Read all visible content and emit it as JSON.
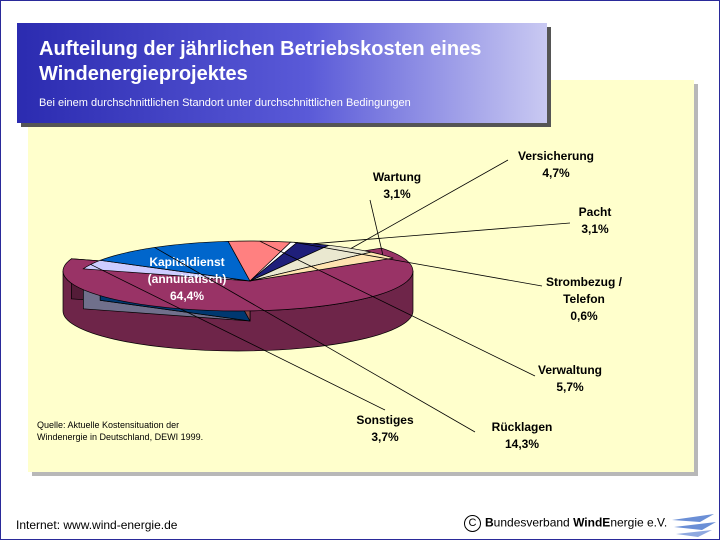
{
  "colors": {
    "frame": "#2a2a9a",
    "panel": "#ffffcc",
    "header_start": "#2b2bb0",
    "header_end": "#c9c9f2"
  },
  "header": {
    "title": "Aufteilung der jährlichen Betriebskosten eines Windenergieprojektes",
    "subtitle": "Bei einem durchschnittlichen Standort unter durchschnittlichen Bedingungen"
  },
  "source": "Quelle: Aktuelle Kostensituation der Windenergie in Deutschland, DEWI 1999.",
  "footer": {
    "internet": "Internet: www.wind-energie.de",
    "copyright_symbol": "C",
    "org": {
      "b1": "B",
      "r1": "undesverband ",
      "b2": "Wind",
      "r2": "E",
      "r3": "nergie e.V."
    }
  },
  "chart_data": {
    "type": "pie",
    "title": "Aufteilung der jährlichen Betriebskosten eines Windenergieprojektes",
    "slices": [
      {
        "label": "Kapitaldienst (annuitätisch)",
        "value": 64.4,
        "value_label": "64,4%",
        "color": "#993366"
      },
      {
        "label": "Sonstiges",
        "value": 3.7,
        "value_label": "3,7%",
        "color": "#ccccff"
      },
      {
        "label": "Rücklagen",
        "value": 14.3,
        "value_label": "14,3%",
        "color": "#0066cc"
      },
      {
        "label": "Verwaltung",
        "value": 5.7,
        "value_label": "5,7%",
        "color": "#ff8080"
      },
      {
        "label": "Strombezug / Telefon",
        "value": 0.6,
        "value_label": "0,6%",
        "color": "#ffffff"
      },
      {
        "label": "Pacht",
        "value": 3.1,
        "value_label": "3,1%",
        "color": "#1f1f7a"
      },
      {
        "label": "Versicherung",
        "value": 4.7,
        "value_label": "4,7%",
        "color": "#eae8d0"
      },
      {
        "label": "Wartung",
        "value": 3.1,
        "value_label": "3,1%",
        "color": "#ffe4b0"
      }
    ]
  }
}
